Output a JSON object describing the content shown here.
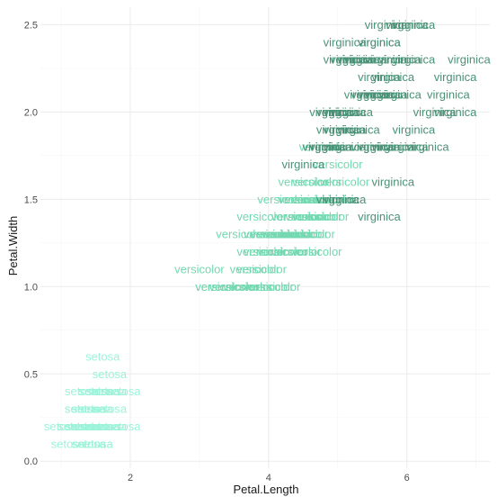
{
  "chart_data": {
    "type": "scatter",
    "mark": "text",
    "xlabel": "Petal.Length",
    "ylabel": "Petal.Width",
    "xlim": [
      0.7,
      7.2
    ],
    "ylim": [
      -0.04,
      2.6
    ],
    "x_ticks": [
      2,
      4,
      6
    ],
    "y_ticks": [
      0.0,
      0.5,
      1.0,
      1.5,
      2.0,
      2.5
    ],
    "x_tick_labels": [
      "2",
      "4",
      "6"
    ],
    "y_tick_labels": [
      "0.0",
      "0.5",
      "1.0",
      "1.5",
      "2.0",
      "2.5"
    ],
    "grid": true,
    "legend": "none",
    "colors": {
      "setosa": "#9df3d9",
      "versicolor": "#74d8b1",
      "virginica": "#4a9277"
    },
    "series": [
      {
        "name": "setosa",
        "points": [
          [
            1.4,
            0.2
          ],
          [
            1.4,
            0.2
          ],
          [
            1.3,
            0.2
          ],
          [
            1.5,
            0.2
          ],
          [
            1.4,
            0.2
          ],
          [
            1.7,
            0.4
          ],
          [
            1.4,
            0.3
          ],
          [
            1.5,
            0.2
          ],
          [
            1.4,
            0.2
          ],
          [
            1.5,
            0.1
          ],
          [
            1.5,
            0.2
          ],
          [
            1.6,
            0.2
          ],
          [
            1.4,
            0.1
          ],
          [
            1.1,
            0.1
          ],
          [
            1.2,
            0.2
          ],
          [
            1.5,
            0.4
          ],
          [
            1.3,
            0.4
          ],
          [
            1.4,
            0.3
          ],
          [
            1.7,
            0.3
          ],
          [
            1.5,
            0.3
          ],
          [
            1.7,
            0.2
          ],
          [
            1.5,
            0.4
          ],
          [
            1.0,
            0.2
          ],
          [
            1.7,
            0.5
          ],
          [
            1.9,
            0.2
          ],
          [
            1.6,
            0.2
          ],
          [
            1.6,
            0.4
          ],
          [
            1.5,
            0.2
          ],
          [
            1.4,
            0.2
          ],
          [
            1.6,
            0.2
          ],
          [
            1.6,
            0.2
          ],
          [
            1.5,
            0.4
          ],
          [
            1.5,
            0.1
          ],
          [
            1.4,
            0.2
          ],
          [
            1.5,
            0.2
          ],
          [
            1.2,
            0.2
          ],
          [
            1.3,
            0.2
          ],
          [
            1.4,
            0.1
          ],
          [
            1.3,
            0.2
          ],
          [
            1.5,
            0.2
          ],
          [
            1.3,
            0.3
          ],
          [
            1.3,
            0.3
          ],
          [
            1.3,
            0.2
          ],
          [
            1.6,
            0.6
          ],
          [
            1.9,
            0.4
          ],
          [
            1.4,
            0.3
          ],
          [
            1.6,
            0.2
          ],
          [
            1.4,
            0.2
          ],
          [
            1.5,
            0.2
          ],
          [
            1.4,
            0.2
          ]
        ]
      },
      {
        "name": "versicolor",
        "points": [
          [
            4.7,
            1.4
          ],
          [
            4.5,
            1.5
          ],
          [
            4.9,
            1.5
          ],
          [
            4.0,
            1.3
          ],
          [
            4.6,
            1.5
          ],
          [
            4.5,
            1.3
          ],
          [
            4.7,
            1.6
          ],
          [
            3.3,
            1.0
          ],
          [
            4.6,
            1.3
          ],
          [
            3.9,
            1.4
          ],
          [
            3.5,
            1.0
          ],
          [
            4.2,
            1.5
          ],
          [
            4.0,
            1.0
          ],
          [
            4.7,
            1.4
          ],
          [
            3.6,
            1.3
          ],
          [
            4.4,
            1.4
          ],
          [
            4.5,
            1.5
          ],
          [
            4.1,
            1.0
          ],
          [
            4.5,
            1.5
          ],
          [
            3.9,
            1.1
          ],
          [
            4.8,
            1.8
          ],
          [
            4.0,
            1.3
          ],
          [
            4.9,
            1.5
          ],
          [
            4.7,
            1.2
          ],
          [
            4.3,
            1.3
          ],
          [
            4.4,
            1.4
          ],
          [
            4.8,
            1.4
          ],
          [
            5.0,
            1.7
          ],
          [
            4.5,
            1.5
          ],
          [
            3.5,
            1.0
          ],
          [
            3.8,
            1.1
          ],
          [
            3.7,
            1.0
          ],
          [
            3.9,
            1.2
          ],
          [
            5.1,
            1.6
          ],
          [
            4.5,
            1.5
          ],
          [
            4.5,
            1.6
          ],
          [
            4.7,
            1.5
          ],
          [
            4.4,
            1.3
          ],
          [
            4.1,
            1.3
          ],
          [
            4.0,
            1.3
          ],
          [
            4.4,
            1.2
          ],
          [
            4.6,
            1.4
          ],
          [
            4.0,
            1.2
          ],
          [
            3.3,
            1.0
          ],
          [
            4.2,
            1.3
          ],
          [
            4.2,
            1.2
          ],
          [
            4.2,
            1.3
          ],
          [
            4.3,
            1.3
          ],
          [
            3.0,
            1.1
          ],
          [
            4.1,
            1.3
          ]
        ]
      },
      {
        "name": "virginica",
        "points": [
          [
            6.0,
            2.5
          ],
          [
            5.1,
            1.9
          ],
          [
            5.9,
            2.1
          ],
          [
            5.6,
            1.8
          ],
          [
            5.8,
            2.2
          ],
          [
            6.6,
            2.1
          ],
          [
            4.5,
            1.7
          ],
          [
            6.3,
            1.8
          ],
          [
            5.8,
            1.8
          ],
          [
            6.1,
            2.5
          ],
          [
            5.1,
            2.0
          ],
          [
            5.3,
            1.9
          ],
          [
            5.5,
            2.1
          ],
          [
            5.0,
            2.0
          ],
          [
            5.1,
            2.4
          ],
          [
            5.3,
            2.3
          ],
          [
            5.5,
            1.8
          ],
          [
            6.7,
            2.2
          ],
          [
            6.9,
            2.3
          ],
          [
            5.0,
            1.5
          ],
          [
            5.7,
            2.3
          ],
          [
            4.9,
            2.0
          ],
          [
            6.7,
            2.0
          ],
          [
            4.9,
            1.8
          ],
          [
            5.7,
            2.1
          ],
          [
            6.0,
            1.8
          ],
          [
            4.8,
            1.8
          ],
          [
            4.9,
            1.8
          ],
          [
            5.6,
            2.1
          ],
          [
            5.8,
            1.6
          ],
          [
            6.1,
            1.9
          ],
          [
            6.4,
            2.0
          ],
          [
            5.6,
            2.2
          ],
          [
            5.1,
            1.5
          ],
          [
            5.6,
            1.4
          ],
          [
            6.1,
            2.3
          ],
          [
            5.6,
            2.4
          ],
          [
            5.5,
            1.8
          ],
          [
            4.8,
            1.8
          ],
          [
            5.4,
            2.1
          ],
          [
            5.6,
            2.4
          ],
          [
            5.1,
            2.3
          ],
          [
            5.1,
            1.9
          ],
          [
            5.9,
            2.3
          ],
          [
            5.7,
            2.5
          ],
          [
            5.2,
            2.3
          ],
          [
            5.0,
            1.9
          ],
          [
            5.2,
            2.0
          ],
          [
            5.4,
            2.3
          ],
          [
            5.1,
            1.8
          ]
        ]
      }
    ]
  }
}
